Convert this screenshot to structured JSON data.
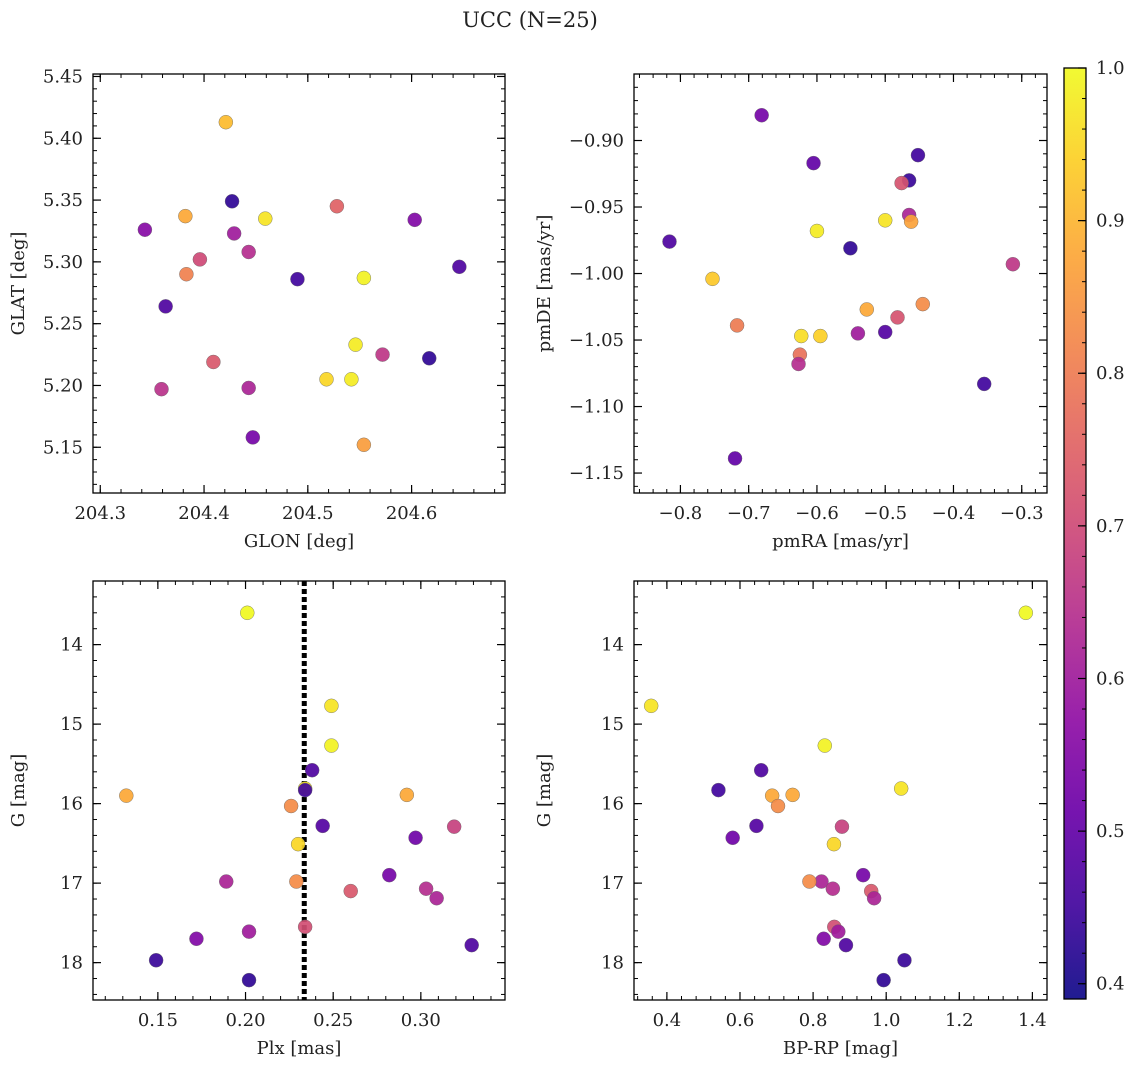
{
  "figure_title": "UCC (N=25)",
  "colorbar": {
    "range": [
      0.39,
      1.0
    ],
    "ticks": [
      0.4,
      0.5,
      0.6,
      0.7,
      0.8,
      0.9,
      1.0
    ],
    "tick_labels": [
      "0.4",
      "0.5",
      "0.6",
      "0.7",
      "0.8",
      "0.9",
      "1.0"
    ],
    "colormap": "plasma"
  },
  "chart_data": [
    {
      "type": "scatter",
      "xlabel": "GLON [deg]",
      "ylabel": "GLAT [deg]",
      "xlim": [
        204.293,
        204.69
      ],
      "ylim": [
        5.113,
        5.452
      ],
      "xticks": [
        204.3,
        204.4,
        204.5,
        204.6
      ],
      "xtick_labels": [
        "204.3",
        "204.4",
        "204.5",
        "204.6"
      ],
      "yticks": [
        5.15,
        5.2,
        5.25,
        5.3,
        5.35,
        5.4,
        5.45
      ],
      "ytick_labels": [
        "5.15",
        "5.20",
        "5.25",
        "5.30",
        "5.35",
        "5.40",
        "5.45"
      ],
      "y_inverted": false,
      "points": [
        {
          "x": 204.421,
          "y": 5.413,
          "c": 0.91
        },
        {
          "x": 204.427,
          "y": 5.349,
          "c": 0.43
        },
        {
          "x": 204.459,
          "y": 5.335,
          "c": 0.97
        },
        {
          "x": 204.382,
          "y": 5.337,
          "c": 0.88
        },
        {
          "x": 204.528,
          "y": 5.345,
          "c": 0.75
        },
        {
          "x": 204.603,
          "y": 5.334,
          "c": 0.55
        },
        {
          "x": 204.343,
          "y": 5.326,
          "c": 0.56
        },
        {
          "x": 204.429,
          "y": 5.323,
          "c": 0.6
        },
        {
          "x": 204.396,
          "y": 5.302,
          "c": 0.7
        },
        {
          "x": 204.443,
          "y": 5.308,
          "c": 0.64
        },
        {
          "x": 204.383,
          "y": 5.29,
          "c": 0.81
        },
        {
          "x": 204.49,
          "y": 5.286,
          "c": 0.45
        },
        {
          "x": 204.554,
          "y": 5.287,
          "c": 0.99
        },
        {
          "x": 204.646,
          "y": 5.296,
          "c": 0.47
        },
        {
          "x": 204.363,
          "y": 5.264,
          "c": 0.47
        },
        {
          "x": 204.546,
          "y": 5.233,
          "c": 0.98
        },
        {
          "x": 204.409,
          "y": 5.219,
          "c": 0.73
        },
        {
          "x": 204.572,
          "y": 5.225,
          "c": 0.66
        },
        {
          "x": 204.617,
          "y": 5.222,
          "c": 0.43
        },
        {
          "x": 204.518,
          "y": 5.205,
          "c": 0.95
        },
        {
          "x": 204.542,
          "y": 5.205,
          "c": 0.98
        },
        {
          "x": 204.359,
          "y": 5.197,
          "c": 0.65
        },
        {
          "x": 204.443,
          "y": 5.198,
          "c": 0.62
        },
        {
          "x": 204.447,
          "y": 5.158,
          "c": 0.53
        },
        {
          "x": 204.554,
          "y": 5.152,
          "c": 0.86
        }
      ]
    },
    {
      "type": "scatter",
      "xlabel": "pmRA [mas/yr]",
      "ylabel": "pmDE [mas/yr]",
      "xlim": [
        -0.868,
        -0.263
      ],
      "ylim": [
        -1.165,
        -0.85
      ],
      "xticks": [
        -0.8,
        -0.7,
        -0.6,
        -0.5,
        -0.4,
        -0.3
      ],
      "xtick_labels": [
        "−0.8",
        "−0.7",
        "−0.6",
        "−0.5",
        "−0.4",
        "−0.3"
      ],
      "yticks": [
        -1.15,
        -1.1,
        -1.05,
        -1.0,
        -0.95,
        -0.9
      ],
      "ytick_labels": [
        "−1.15",
        "−1.10",
        "−1.05",
        "−1.00",
        "−0.95",
        "−0.90"
      ],
      "y_inverted": false,
      "points": [
        {
          "x": -0.681,
          "y": -0.881,
          "c": 0.53
        },
        {
          "x": -0.605,
          "y": -0.917,
          "c": 0.5
        },
        {
          "x": -0.452,
          "y": -0.911,
          "c": 0.45
        },
        {
          "x": -0.465,
          "y": -0.93,
          "c": 0.44
        },
        {
          "x": -0.476,
          "y": -0.932,
          "c": 0.72
        },
        {
          "x": -0.465,
          "y": -0.956,
          "c": 0.62
        },
        {
          "x": -0.462,
          "y": -0.961,
          "c": 0.87
        },
        {
          "x": -0.5,
          "y": -0.96,
          "c": 0.97
        },
        {
          "x": -0.6,
          "y": -0.968,
          "c": 0.98
        },
        {
          "x": -0.816,
          "y": -0.976,
          "c": 0.47
        },
        {
          "x": -0.551,
          "y": -0.981,
          "c": 0.43
        },
        {
          "x": -0.753,
          "y": -1.004,
          "c": 0.93
        },
        {
          "x": -0.313,
          "y": -0.993,
          "c": 0.66
        },
        {
          "x": -0.527,
          "y": -1.027,
          "c": 0.88
        },
        {
          "x": -0.445,
          "y": -1.023,
          "c": 0.83
        },
        {
          "x": -0.717,
          "y": -1.039,
          "c": 0.8
        },
        {
          "x": -0.482,
          "y": -1.033,
          "c": 0.72
        },
        {
          "x": -0.623,
          "y": -1.047,
          "c": 0.96
        },
        {
          "x": -0.595,
          "y": -1.047,
          "c": 0.94
        },
        {
          "x": -0.54,
          "y": -1.045,
          "c": 0.6
        },
        {
          "x": -0.5,
          "y": -1.044,
          "c": 0.48
        },
        {
          "x": -0.625,
          "y": -1.061,
          "c": 0.78
        },
        {
          "x": -0.627,
          "y": -1.068,
          "c": 0.64
        },
        {
          "x": -0.355,
          "y": -1.083,
          "c": 0.45
        },
        {
          "x": -0.72,
          "y": -1.139,
          "c": 0.5
        }
      ]
    },
    {
      "type": "scatter",
      "xlabel": "Plx [mas]",
      "ylabel": "G [mag]",
      "xlim": [
        0.113,
        0.348
      ],
      "ylim": [
        18.47,
        13.2
      ],
      "xticks": [
        0.15,
        0.2,
        0.25,
        0.3
      ],
      "xtick_labels": [
        "0.15",
        "0.20",
        "0.25",
        "0.30"
      ],
      "yticks": [
        14,
        15,
        16,
        17,
        18
      ],
      "ytick_labels": [
        "14",
        "15",
        "16",
        "17",
        "18"
      ],
      "y_inverted": true,
      "vline": {
        "x": 0.2335,
        "style": "dotted"
      },
      "points": [
        {
          "x": 0.201,
          "y": 13.6,
          "c": 1.0
        },
        {
          "x": 0.249,
          "y": 14.77,
          "c": 0.97
        },
        {
          "x": 0.249,
          "y": 15.27,
          "c": 0.99
        },
        {
          "x": 0.238,
          "y": 15.58,
          "c": 0.47
        },
        {
          "x": 0.234,
          "y": 15.81,
          "c": 0.97
        },
        {
          "x": 0.234,
          "y": 15.83,
          "c": 0.45
        },
        {
          "x": 0.132,
          "y": 15.9,
          "c": 0.88
        },
        {
          "x": 0.292,
          "y": 15.89,
          "c": 0.88
        },
        {
          "x": 0.226,
          "y": 16.03,
          "c": 0.83
        },
        {
          "x": 0.244,
          "y": 16.28,
          "c": 0.48
        },
        {
          "x": 0.319,
          "y": 16.29,
          "c": 0.68
        },
        {
          "x": 0.297,
          "y": 16.43,
          "c": 0.52
        },
        {
          "x": 0.23,
          "y": 16.51,
          "c": 0.95
        },
        {
          "x": 0.189,
          "y": 16.98,
          "c": 0.62
        },
        {
          "x": 0.229,
          "y": 16.98,
          "c": 0.83
        },
        {
          "x": 0.282,
          "y": 16.9,
          "c": 0.53
        },
        {
          "x": 0.303,
          "y": 17.07,
          "c": 0.64
        },
        {
          "x": 0.26,
          "y": 17.1,
          "c": 0.73
        },
        {
          "x": 0.309,
          "y": 17.19,
          "c": 0.62
        },
        {
          "x": 0.234,
          "y": 17.55,
          "c": 0.71
        },
        {
          "x": 0.202,
          "y": 17.61,
          "c": 0.6
        },
        {
          "x": 0.172,
          "y": 17.7,
          "c": 0.55
        },
        {
          "x": 0.329,
          "y": 17.78,
          "c": 0.47
        },
        {
          "x": 0.149,
          "y": 17.97,
          "c": 0.44
        },
        {
          "x": 0.202,
          "y": 18.22,
          "c": 0.43
        }
      ]
    },
    {
      "type": "scatter",
      "xlabel": "BP-RP [mag]",
      "ylabel": "G [mag]",
      "xlim": [
        0.31,
        1.44
      ],
      "ylim": [
        18.47,
        13.2
      ],
      "xticks": [
        0.4,
        0.6,
        0.8,
        1.0,
        1.2,
        1.4
      ],
      "xtick_labels": [
        "0.4",
        "0.6",
        "0.8",
        "1.0",
        "1.2",
        "1.4"
      ],
      "yticks": [
        14,
        15,
        16,
        17,
        18
      ],
      "ytick_labels": [
        "14",
        "15",
        "16",
        "17",
        "18"
      ],
      "y_inverted": true,
      "points": [
        {
          "x": 1.382,
          "y": 13.6,
          "c": 1.0
        },
        {
          "x": 0.357,
          "y": 14.77,
          "c": 0.97
        },
        {
          "x": 0.832,
          "y": 15.27,
          "c": 0.99
        },
        {
          "x": 0.658,
          "y": 15.58,
          "c": 0.47
        },
        {
          "x": 1.041,
          "y": 15.81,
          "c": 0.97
        },
        {
          "x": 0.541,
          "y": 15.83,
          "c": 0.45
        },
        {
          "x": 0.688,
          "y": 15.9,
          "c": 0.88
        },
        {
          "x": 0.744,
          "y": 15.89,
          "c": 0.88
        },
        {
          "x": 0.704,
          "y": 16.03,
          "c": 0.83
        },
        {
          "x": 0.645,
          "y": 16.28,
          "c": 0.48
        },
        {
          "x": 0.879,
          "y": 16.29,
          "c": 0.68
        },
        {
          "x": 0.58,
          "y": 16.43,
          "c": 0.52
        },
        {
          "x": 0.857,
          "y": 16.51,
          "c": 0.95
        },
        {
          "x": 0.823,
          "y": 16.98,
          "c": 0.62
        },
        {
          "x": 0.79,
          "y": 16.98,
          "c": 0.83
        },
        {
          "x": 0.937,
          "y": 16.9,
          "c": 0.53
        },
        {
          "x": 0.854,
          "y": 17.07,
          "c": 0.64
        },
        {
          "x": 0.959,
          "y": 17.1,
          "c": 0.73
        },
        {
          "x": 0.967,
          "y": 17.19,
          "c": 0.62
        },
        {
          "x": 0.858,
          "y": 17.55,
          "c": 0.71
        },
        {
          "x": 0.869,
          "y": 17.61,
          "c": 0.6
        },
        {
          "x": 0.829,
          "y": 17.7,
          "c": 0.55
        },
        {
          "x": 0.89,
          "y": 17.78,
          "c": 0.47
        },
        {
          "x": 1.05,
          "y": 17.97,
          "c": 0.44
        },
        {
          "x": 0.993,
          "y": 18.22,
          "c": 0.43
        }
      ]
    }
  ]
}
